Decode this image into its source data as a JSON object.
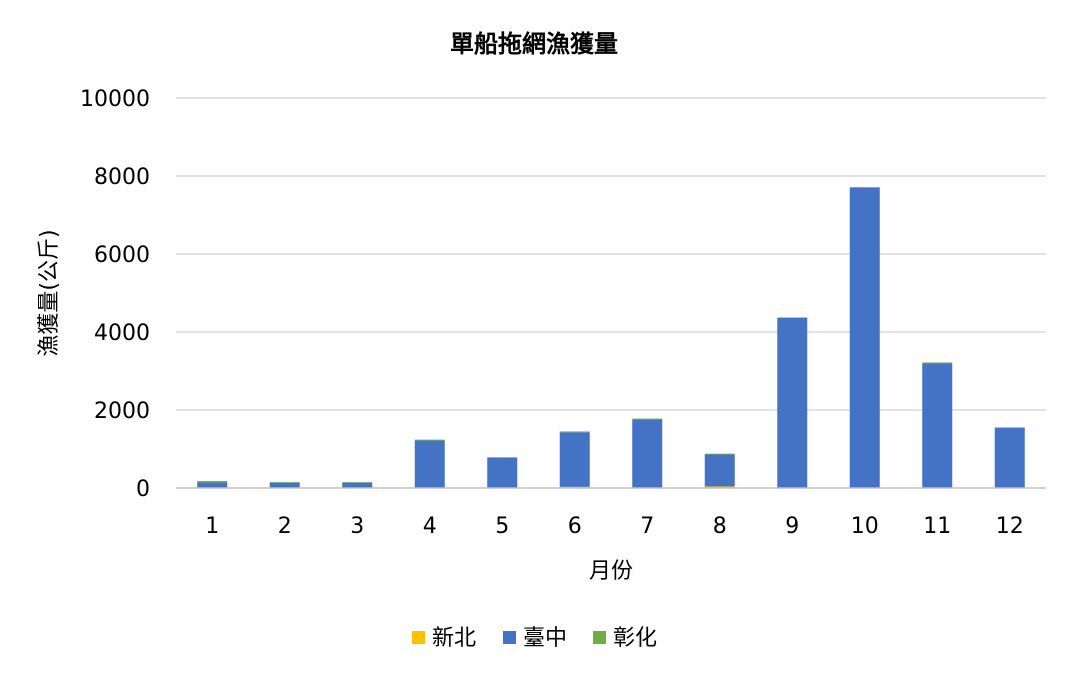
{
  "chart_data": {
    "type": "bar",
    "stacked": true,
    "title": "單船拖網漁獲量",
    "xlabel": "月份",
    "ylabel": "漁獲量(公斤)",
    "ylim": [
      0,
      10000
    ],
    "yticks": [
      0,
      2000,
      4000,
      6000,
      8000,
      10000
    ],
    "categories": [
      "1",
      "2",
      "3",
      "4",
      "5",
      "6",
      "7",
      "8",
      "9",
      "10",
      "11",
      "12"
    ],
    "grid": true,
    "legend_position": "bottom",
    "series": [
      {
        "name": "新北",
        "color": "#FFC000",
        "values": [
          10,
          0,
          0,
          0,
          0,
          30,
          0,
          40,
          0,
          0,
          0,
          0
        ]
      },
      {
        "name": "臺中",
        "color": "#4472C4",
        "values": [
          130,
          140,
          140,
          1220,
          770,
          1400,
          1760,
          820,
          4370,
          7710,
          3200,
          1550
        ]
      },
      {
        "name": "彰化",
        "color": "#70AD47",
        "values": [
          40,
          10,
          10,
          20,
          20,
          20,
          20,
          20,
          0,
          0,
          20,
          0
        ]
      }
    ]
  }
}
